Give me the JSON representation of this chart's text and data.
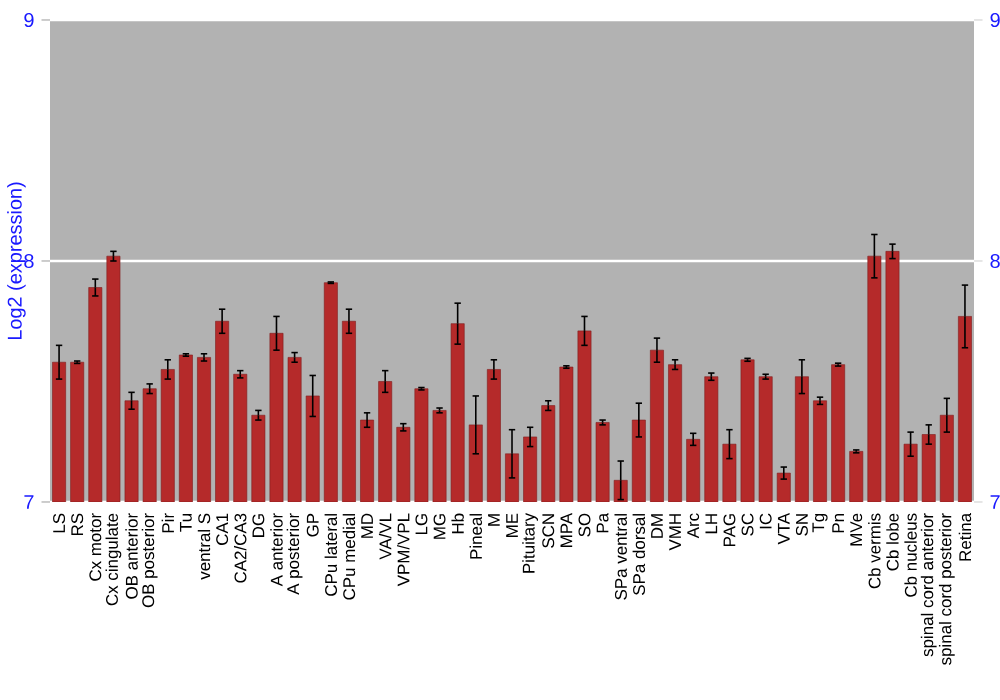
{
  "chart_data": {
    "type": "bar",
    "ylabel": "Log2 (expression)",
    "categories": [
      "LS",
      "RS",
      "Cx motor",
      "Cx cingulate",
      "OB anterior",
      "OB posterior",
      "Pir",
      "Tu",
      "ventral S",
      "CA1",
      "CA2/CA3",
      "DG",
      "A anterior",
      "A posterior",
      "GP",
      "CPu lateral",
      "CPu medial",
      "MD",
      "VA/VL",
      "VPM/VPL",
      "LG",
      "MG",
      "Hb",
      "Pineal",
      "M",
      "ME",
      "Pituitary",
      "SCN",
      "MPA",
      "SO",
      "Pa",
      "SPa ventral",
      "SPa dorsal",
      "DM",
      "VMH",
      "Arc",
      "LH",
      "PAG",
      "SC",
      "IC",
      "VTA",
      "SN",
      "Tg",
      "Pn",
      "MVe",
      "Cb vermis",
      "Cb lobe",
      "Cb nucleus",
      "spinal cord anterior",
      "spinal cord posterior",
      "Retina"
    ],
    "values": [
      7.58,
      7.58,
      7.89,
      8.02,
      7.42,
      7.47,
      7.55,
      7.61,
      7.6,
      7.75,
      7.53,
      7.36,
      7.7,
      7.6,
      7.44,
      7.91,
      7.75,
      7.34,
      7.5,
      7.31,
      7.47,
      7.38,
      7.74,
      7.32,
      7.55,
      7.2,
      7.27,
      7.4,
      7.56,
      7.71,
      7.33,
      7.09,
      7.34,
      7.63,
      7.57,
      7.26,
      7.52,
      7.24,
      7.59,
      7.52,
      7.12,
      7.52,
      7.42,
      7.57,
      7.21,
      8.02,
      8.04,
      7.24,
      7.28,
      7.36,
      7.77
    ],
    "errors": [
      0.07,
      0.005,
      0.035,
      0.02,
      0.035,
      0.02,
      0.04,
      0.005,
      0.015,
      0.05,
      0.015,
      0.02,
      0.07,
      0.02,
      0.085,
      0.003,
      0.05,
      0.03,
      0.045,
      0.015,
      0.005,
      0.01,
      0.085,
      0.12,
      0.04,
      0.1,
      0.04,
      0.02,
      0.005,
      0.06,
      0.01,
      0.08,
      0.07,
      0.05,
      0.02,
      0.025,
      0.015,
      0.06,
      0.006,
      0.01,
      0.025,
      0.07,
      0.015,
      0.006,
      0.006,
      0.09,
      0.03,
      0.05,
      0.04,
      0.07,
      0.13
    ],
    "color": "#b52a2a",
    "ylim": [
      7,
      9
    ],
    "yticks": [
      7,
      8,
      9
    ],
    "y2lim": [
      7,
      9
    ],
    "y2ticks": [
      7,
      8,
      9
    ],
    "grid": "y"
  }
}
